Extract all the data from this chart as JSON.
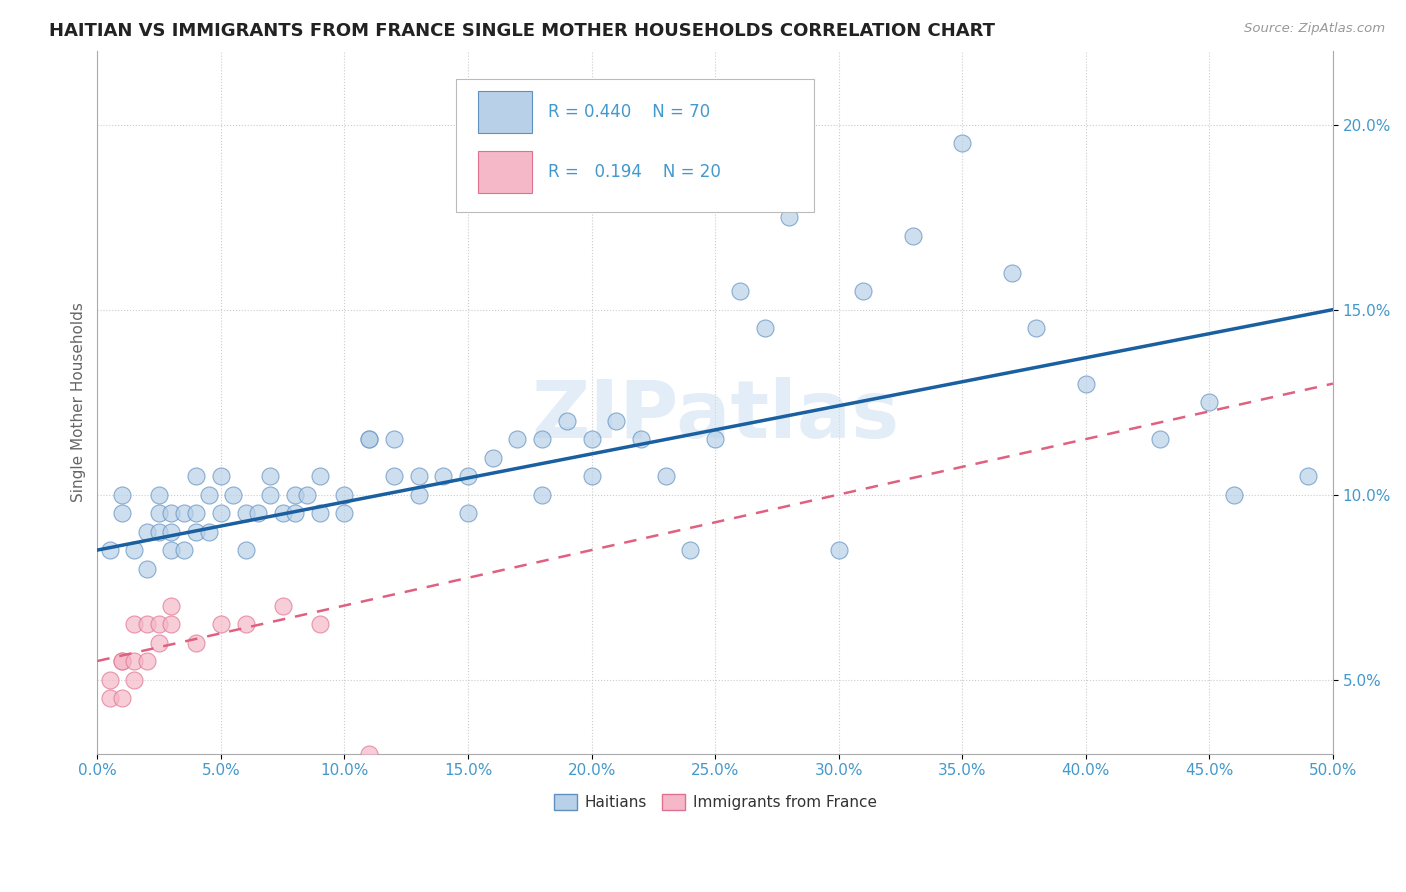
{
  "title": "HAITIAN VS IMMIGRANTS FROM FRANCE SINGLE MOTHER HOUSEHOLDS CORRELATION CHART",
  "source": "Source: ZipAtlas.com",
  "ylabel_label": "Single Mother Households",
  "haitian_R": "0.440",
  "haitian_N": "70",
  "france_R": "0.194",
  "france_N": "20",
  "haitian_color": "#b8d0e8",
  "france_color": "#f5b8c8",
  "haitian_edge_color": "#6090c0",
  "france_edge_color": "#e07090",
  "haitian_line_color": "#1a5fa0",
  "france_line_color": "#e06080",
  "watermark": "ZIPatlas",
  "xlim": [
    0.0,
    0.5
  ],
  "ylim": [
    0.03,
    0.22
  ],
  "background_color": "#ffffff",
  "grid_color": "#cccccc",
  "tick_color": "#4499cc",
  "haitian_x": [
    0.005,
    0.01,
    0.01,
    0.015,
    0.02,
    0.02,
    0.025,
    0.025,
    0.025,
    0.03,
    0.03,
    0.03,
    0.035,
    0.035,
    0.04,
    0.04,
    0.04,
    0.045,
    0.045,
    0.05,
    0.05,
    0.055,
    0.06,
    0.06,
    0.065,
    0.07,
    0.07,
    0.075,
    0.08,
    0.08,
    0.085,
    0.09,
    0.09,
    0.1,
    0.1,
    0.11,
    0.11,
    0.12,
    0.12,
    0.13,
    0.13,
    0.14,
    0.15,
    0.15,
    0.16,
    0.17,
    0.18,
    0.18,
    0.19,
    0.2,
    0.2,
    0.21,
    0.22,
    0.23,
    0.24,
    0.25,
    0.26,
    0.27,
    0.28,
    0.3,
    0.31,
    0.33,
    0.35,
    0.37,
    0.38,
    0.4,
    0.43,
    0.45,
    0.46,
    0.49
  ],
  "haitian_y": [
    0.085,
    0.095,
    0.1,
    0.085,
    0.08,
    0.09,
    0.09,
    0.095,
    0.1,
    0.085,
    0.09,
    0.095,
    0.085,
    0.095,
    0.09,
    0.095,
    0.105,
    0.09,
    0.1,
    0.095,
    0.105,
    0.1,
    0.085,
    0.095,
    0.095,
    0.1,
    0.105,
    0.095,
    0.095,
    0.1,
    0.1,
    0.095,
    0.105,
    0.095,
    0.1,
    0.115,
    0.115,
    0.105,
    0.115,
    0.1,
    0.105,
    0.105,
    0.095,
    0.105,
    0.11,
    0.115,
    0.1,
    0.115,
    0.12,
    0.105,
    0.115,
    0.12,
    0.115,
    0.105,
    0.085,
    0.115,
    0.155,
    0.145,
    0.175,
    0.085,
    0.155,
    0.17,
    0.195,
    0.16,
    0.145,
    0.13,
    0.115,
    0.125,
    0.1,
    0.105
  ],
  "france_x": [
    0.005,
    0.005,
    0.01,
    0.01,
    0.01,
    0.015,
    0.015,
    0.015,
    0.02,
    0.02,
    0.025,
    0.025,
    0.03,
    0.03,
    0.04,
    0.05,
    0.06,
    0.075,
    0.09,
    0.11
  ],
  "france_y": [
    0.045,
    0.05,
    0.055,
    0.045,
    0.055,
    0.055,
    0.065,
    0.05,
    0.055,
    0.065,
    0.06,
    0.065,
    0.065,
    0.07,
    0.06,
    0.065,
    0.065,
    0.07,
    0.065,
    0.03
  ],
  "haitian_line_x": [
    0.0,
    0.5
  ],
  "haitian_line_y": [
    0.085,
    0.15
  ],
  "france_line_x": [
    0.0,
    0.5
  ],
  "france_line_y": [
    0.055,
    0.13
  ]
}
